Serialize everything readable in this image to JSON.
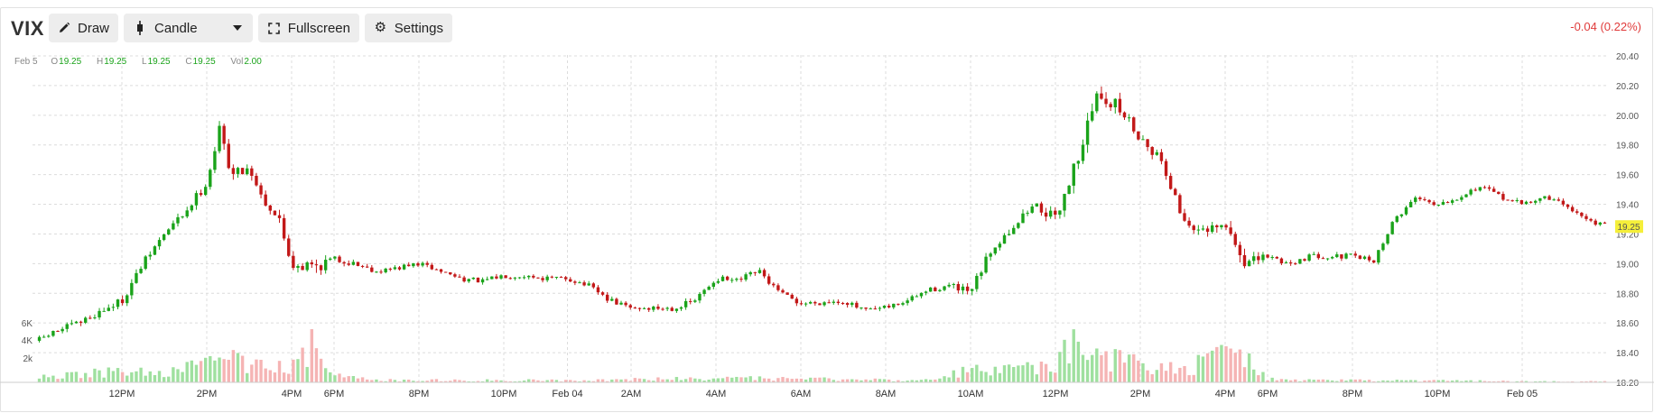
{
  "toolbar": {
    "symbol": "VIX",
    "draw_label": "Draw",
    "chart_type_label": "Candle",
    "fullscreen_label": "Fullscreen",
    "settings_label": "Settings",
    "change_text": "-0.04 (0.22%)"
  },
  "ohlc": {
    "date": "Feb 5",
    "open_label": "O",
    "open": "19.25",
    "high_label": "H",
    "high": "19.25",
    "low_label": "L",
    "low": "19.25",
    "close_label": "C",
    "close": "19.25",
    "vol_label": "Vol",
    "vol": "2.00"
  },
  "colors": {
    "up": "#1aa31a",
    "down": "#c21818",
    "vol_up": "#9fe09f",
    "vol_down": "#f5b4b4",
    "last_price_bg": "#f5ef3a",
    "change": "#e03b3b"
  },
  "chart_data": {
    "type": "candlestick",
    "symbol": "VIX",
    "last_price": "19.25",
    "ylim": [
      18.2,
      20.45
    ],
    "y_ticks": [
      "20.40",
      "20.20",
      "20.00",
      "19.80",
      "19.60",
      "19.40",
      "19.20",
      "19.00",
      "18.80",
      "18.60",
      "18.40",
      "18.20"
    ],
    "volume_ticks": [
      "6K",
      "4K",
      "2k"
    ],
    "x_ticks": [
      "12PM",
      "2PM",
      "4PM",
      "6PM",
      "8PM",
      "10PM",
      "Feb 04",
      "2AM",
      "4AM",
      "6AM",
      "8AM",
      "10AM",
      "12PM",
      "2PM",
      "4PM",
      "6PM",
      "8PM",
      "10PM",
      "Feb 05"
    ],
    "x_tick_pos": [
      2,
      4,
      6,
      7,
      9,
      11,
      12.5,
      14,
      16,
      18,
      20,
      22,
      24,
      26,
      28,
      29,
      31,
      33,
      35
    ],
    "x_range": [
      0,
      37
    ],
    "price_path": [
      [
        0,
        18.48
      ],
      [
        0.5,
        18.55
      ],
      [
        1,
        18.6
      ],
      [
        1.5,
        18.68
      ],
      [
        2,
        18.75
      ],
      [
        2.5,
        19.0
      ],
      [
        3,
        19.2
      ],
      [
        3.5,
        19.35
      ],
      [
        4,
        19.55
      ],
      [
        4.3,
        19.9
      ],
      [
        4.6,
        19.6
      ],
      [
        5,
        19.65
      ],
      [
        5.3,
        19.45
      ],
      [
        5.7,
        19.3
      ],
      [
        6,
        19.0
      ],
      [
        6.5,
        18.98
      ],
      [
        7,
        19.03
      ],
      [
        7.5,
        19.0
      ],
      [
        8,
        18.95
      ],
      [
        8.5,
        18.97
      ],
      [
        9,
        19.0
      ],
      [
        9.5,
        18.95
      ],
      [
        10,
        18.9
      ],
      [
        10.5,
        18.88
      ],
      [
        11,
        18.92
      ],
      [
        11.5,
        18.92
      ],
      [
        12,
        18.9
      ],
      [
        12.5,
        18.9
      ],
      [
        13,
        18.85
      ],
      [
        13.5,
        18.75
      ],
      [
        14,
        18.7
      ],
      [
        15,
        18.7
      ],
      [
        15.5,
        18.75
      ],
      [
        16,
        18.9
      ],
      [
        16.5,
        18.88
      ],
      [
        17,
        18.95
      ],
      [
        17.5,
        18.8
      ],
      [
        18,
        18.73
      ],
      [
        18.5,
        18.74
      ],
      [
        19,
        18.75
      ],
      [
        19.5,
        18.68
      ],
      [
        20,
        18.7
      ],
      [
        20.5,
        18.75
      ],
      [
        21,
        18.82
      ],
      [
        21.5,
        18.85
      ],
      [
        22,
        18.8
      ],
      [
        22.5,
        19.1
      ],
      [
        23,
        19.25
      ],
      [
        23.5,
        19.4
      ],
      [
        24,
        19.3
      ],
      [
        24.5,
        19.7
      ],
      [
        25,
        20.15
      ],
      [
        25.5,
        20.05
      ],
      [
        26,
        19.85
      ],
      [
        26.5,
        19.7
      ],
      [
        27,
        19.3
      ],
      [
        27.5,
        19.2
      ],
      [
        28,
        19.25
      ],
      [
        28.5,
        19.0
      ],
      [
        29,
        19.05
      ],
      [
        29.5,
        19.0
      ],
      [
        30,
        19.05
      ],
      [
        30.5,
        19.05
      ],
      [
        31,
        19.05
      ],
      [
        31.5,
        19.02
      ],
      [
        32,
        19.3
      ],
      [
        32.5,
        19.45
      ],
      [
        33,
        19.4
      ],
      [
        33.5,
        19.45
      ],
      [
        34,
        19.52
      ],
      [
        34.5,
        19.45
      ],
      [
        35,
        19.4
      ],
      [
        35.5,
        19.45
      ],
      [
        36,
        19.4
      ],
      [
        36.5,
        19.3
      ],
      [
        37,
        19.25
      ]
    ],
    "volume_profile": [
      [
        0,
        0.1
      ],
      [
        1,
        0.2
      ],
      [
        2,
        0.25
      ],
      [
        3,
        0.2
      ],
      [
        4,
        0.4
      ],
      [
        4.5,
        0.6
      ],
      [
        5,
        0.35
      ],
      [
        6,
        0.5
      ],
      [
        6.5,
        0.9
      ],
      [
        7,
        0.15
      ],
      [
        8,
        0.05
      ],
      [
        13,
        0.05
      ],
      [
        16,
        0.1
      ],
      [
        21,
        0.05
      ],
      [
        22,
        0.3
      ],
      [
        23,
        0.3
      ],
      [
        24,
        0.4
      ],
      [
        24.5,
        0.95
      ],
      [
        25,
        0.7
      ],
      [
        26,
        0.4
      ],
      [
        27,
        0.3
      ],
      [
        28,
        0.6
      ],
      [
        28.3,
        0.8
      ],
      [
        29,
        0.1
      ],
      [
        30,
        0.05
      ],
      [
        37,
        0.02
      ]
    ]
  }
}
